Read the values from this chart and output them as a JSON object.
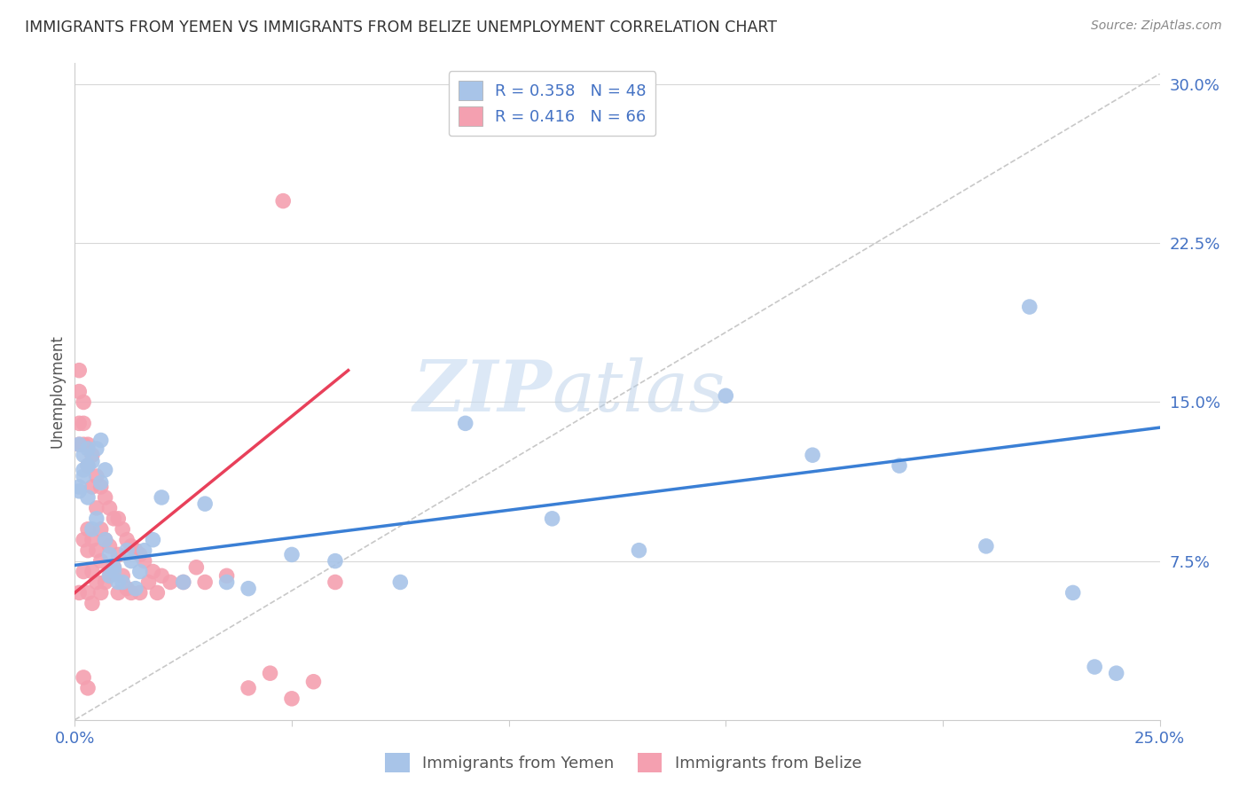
{
  "title": "IMMIGRANTS FROM YEMEN VS IMMIGRANTS FROM BELIZE UNEMPLOYMENT CORRELATION CHART",
  "source": "Source: ZipAtlas.com",
  "ylabel": "Unemployment",
  "yticks": [
    "7.5%",
    "15.0%",
    "22.5%",
    "30.0%"
  ],
  "ytick_vals": [
    0.075,
    0.15,
    0.225,
    0.3
  ],
  "xlim": [
    0.0,
    0.25
  ],
  "ylim": [
    0.0,
    0.31
  ],
  "watermark": "ZIPatlas",
  "blue_color": "#a8c4e8",
  "pink_color": "#f4a0b0",
  "line_blue": "#3a7fd5",
  "line_pink": "#e8405a",
  "diag_color": "#c8c8c8",
  "yemen_x": [
    0.001,
    0.002,
    0.003,
    0.002,
    0.001,
    0.003,
    0.004,
    0.002,
    0.001,
    0.003,
    0.005,
    0.004,
    0.006,
    0.005,
    0.007,
    0.006,
    0.008,
    0.007,
    0.009,
    0.008,
    0.01,
    0.009,
    0.012,
    0.011,
    0.013,
    0.015,
    0.014,
    0.016,
    0.018,
    0.02,
    0.025,
    0.03,
    0.035,
    0.04,
    0.05,
    0.06,
    0.075,
    0.09,
    0.11,
    0.13,
    0.15,
    0.17,
    0.19,
    0.21,
    0.22,
    0.23,
    0.235,
    0.24
  ],
  "yemen_y": [
    0.13,
    0.125,
    0.12,
    0.115,
    0.11,
    0.128,
    0.122,
    0.118,
    0.108,
    0.105,
    0.095,
    0.09,
    0.132,
    0.128,
    0.118,
    0.112,
    0.078,
    0.085,
    0.072,
    0.068,
    0.065,
    0.07,
    0.08,
    0.065,
    0.075,
    0.07,
    0.062,
    0.08,
    0.085,
    0.105,
    0.065,
    0.102,
    0.065,
    0.062,
    0.078,
    0.075,
    0.065,
    0.14,
    0.095,
    0.08,
    0.153,
    0.125,
    0.12,
    0.082,
    0.195,
    0.06,
    0.025,
    0.022
  ],
  "belize_x": [
    0.001,
    0.001,
    0.001,
    0.001,
    0.001,
    0.002,
    0.002,
    0.002,
    0.002,
    0.002,
    0.003,
    0.003,
    0.003,
    0.003,
    0.003,
    0.004,
    0.004,
    0.004,
    0.004,
    0.004,
    0.005,
    0.005,
    0.005,
    0.005,
    0.006,
    0.006,
    0.006,
    0.006,
    0.007,
    0.007,
    0.007,
    0.008,
    0.008,
    0.008,
    0.009,
    0.009,
    0.01,
    0.01,
    0.01,
    0.011,
    0.011,
    0.012,
    0.012,
    0.013,
    0.013,
    0.014,
    0.015,
    0.015,
    0.016,
    0.017,
    0.018,
    0.019,
    0.02,
    0.022,
    0.025,
    0.028,
    0.03,
    0.035,
    0.04,
    0.045,
    0.05,
    0.055,
    0.06,
    0.048,
    0.002,
    0.003
  ],
  "belize_y": [
    0.165,
    0.155,
    0.14,
    0.13,
    0.06,
    0.15,
    0.14,
    0.13,
    0.085,
    0.07,
    0.13,
    0.12,
    0.09,
    0.08,
    0.06,
    0.125,
    0.11,
    0.085,
    0.07,
    0.055,
    0.115,
    0.1,
    0.08,
    0.065,
    0.11,
    0.09,
    0.075,
    0.06,
    0.105,
    0.085,
    0.065,
    0.1,
    0.082,
    0.068,
    0.095,
    0.072,
    0.095,
    0.078,
    0.06,
    0.09,
    0.068,
    0.085,
    0.062,
    0.082,
    0.06,
    0.08,
    0.078,
    0.06,
    0.075,
    0.065,
    0.07,
    0.06,
    0.068,
    0.065,
    0.065,
    0.072,
    0.065,
    0.068,
    0.015,
    0.022,
    0.01,
    0.018,
    0.065,
    0.245,
    0.02,
    0.015
  ],
  "blue_line_x": [
    0.0,
    0.25
  ],
  "blue_line_y": [
    0.073,
    0.138
  ],
  "pink_line_x": [
    0.0,
    0.063
  ],
  "pink_line_y": [
    0.06,
    0.165
  ],
  "diag_line_x": [
    0.0,
    0.25
  ],
  "diag_line_y": [
    0.0,
    0.305
  ]
}
